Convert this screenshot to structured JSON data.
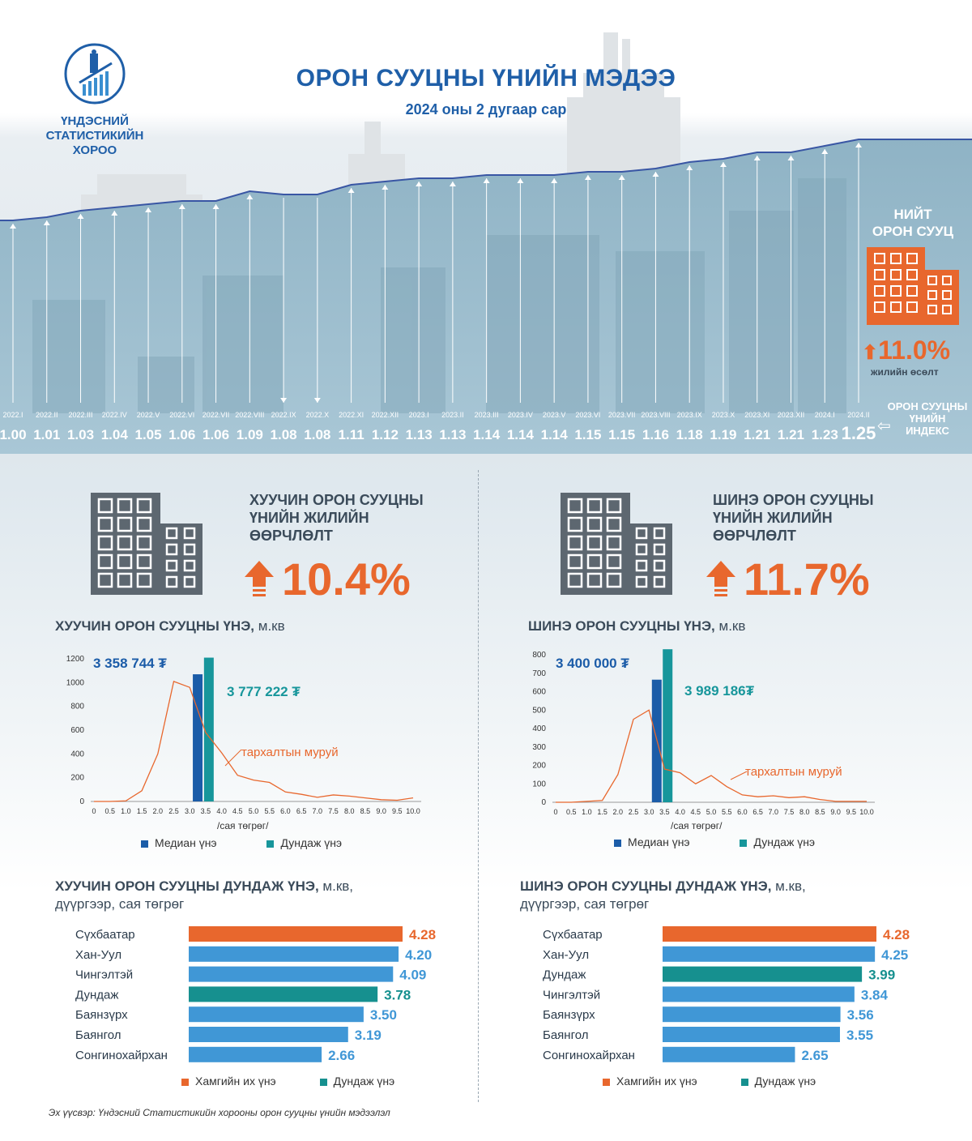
{
  "header": {
    "org_line1": "ҮНДЭСНИЙ",
    "org_line2": "СТАТИСТИКИЙН",
    "org_line3": "ХОРОО",
    "title": "ОРОН СУУЦНЫ ҮНИЙН МЭДЭЭ",
    "subtitle": "2024 оны 2 дугаар сар"
  },
  "index_panel": {
    "label_total": "НИЙТ\nОРОН СУУЦ",
    "total_change": "11.0%",
    "total_change_caption": "жилийн өсөлт",
    "index_label": "ОРОН СУУЦНЫ\nҮНИЙН\nИНДЕКС"
  },
  "old_housing": {
    "title_lines": [
      "ХУУЧИН ОРОН СУУЦНЫ",
      "ҮНИЙН ЖИЛИЙН",
      "ӨӨРЧЛӨЛТ"
    ],
    "change": "10.4%",
    "price_title": "ХУУЧИН ОРОН СУУЦНЫ ҮНЭ,",
    "price_unit": " м.кв",
    "median_label": "3 358 744 ₮",
    "mean_label": "3 777 222 ₮",
    "curve_label": "тархалтын муруй",
    "x_unit": "/сая төгрөг/",
    "legend_median": "Медиан үнэ",
    "legend_mean": "Дундаж үнэ",
    "district_title": "ХУУЧИН ОРОН СУУЦНЫ ДУНДАЖ ҮНЭ,",
    "district_title_unit": " м.кв,",
    "district_subtitle": "дүүргээр, сая төгрөг",
    "legend_max": "Хамгийн их үнэ",
    "legend_avg": "Дундаж үнэ"
  },
  "new_housing": {
    "title_lines": [
      "ШИНЭ ОРОН СУУЦНЫ",
      "ҮНИЙН ЖИЛИЙН",
      "ӨӨРЧЛӨЛТ"
    ],
    "change": "11.7%",
    "price_title": "ШИНЭ ОРОН СУУЦНЫ ҮНЭ,",
    "price_unit": " м.кв",
    "median_label": "3 400 000 ₮",
    "mean_label": "3 989 186₮",
    "curve_label": "тархалтын муруй",
    "x_unit": "/сая төгрөг/",
    "legend_median": "Медиан үнэ",
    "legend_mean": "Дундаж үнэ",
    "district_title": "ШИНЭ ОРОН СУУЦНЫ ДУНДАЖ ҮНЭ,",
    "district_title_unit": " м.кв,",
    "district_subtitle": "дүүргээр, сая төгрөг",
    "legend_max": "Хамгийн их үнэ",
    "legend_avg": "Дундаж үнэ"
  },
  "source": "Эх үүсвэр: Үндэсний Статистикийн хорооны орон сууцны үнийн мэдээлэл",
  "colors": {
    "brand_blue": "#1f5fa8",
    "orange": "#e8672d",
    "median": "#1b5ca8",
    "mean": "#17969b",
    "bar_blue": "#4097d6",
    "teal_bar": "#16908f"
  },
  "chart_data": [
    {
      "type": "line",
      "name": "index",
      "x": [
        "2022.I",
        "2022.II",
        "2022.III",
        "2022.IV",
        "2022.V",
        "2022.VI",
        "2022.VII",
        "2022.VIII",
        "2022.IX",
        "2022.X",
        "2022.XI",
        "2022.XII",
        "2023.I",
        "2023.II",
        "2023.III",
        "2023.IV",
        "2023.V",
        "2023.VI",
        "2023.VII",
        "2023.VIII",
        "2023.IX",
        "2023.X",
        "2023.XI",
        "2023.XII",
        "2024.I",
        "2024.II"
      ],
      "values": [
        1.0,
        1.01,
        1.03,
        1.04,
        1.05,
        1.06,
        1.06,
        1.09,
        1.08,
        1.08,
        1.11,
        1.12,
        1.13,
        1.13,
        1.14,
        1.14,
        1.14,
        1.15,
        1.15,
        1.16,
        1.18,
        1.19,
        1.21,
        1.21,
        1.23,
        1.25
      ],
      "value_labels": [
        "1.00",
        "1.01",
        "1.03",
        "1.04",
        "1.05",
        "1.06",
        "1.06",
        "1.09",
        "1.08",
        "1.08",
        "1.11",
        "1.12",
        "1.13",
        "1.13",
        "1.14",
        "1.14",
        "1.14",
        "1.15",
        "1.15",
        "1.16",
        "1.18",
        "1.19",
        "1.21",
        "1.21",
        "1.23",
        "1.25"
      ],
      "down": [
        8,
        9
      ]
    },
    {
      "type": "bar",
      "name": "old_distribution",
      "x_ticks": [
        "0",
        "0.5",
        "1.0",
        "1.5",
        "2.0",
        "2.5",
        "3.0",
        "3.5",
        "4.0",
        "4.5",
        "5.0",
        "5.5",
        "6.0",
        "6.5",
        "7.0",
        "7.5",
        "8.0",
        "8.5",
        "9.0",
        "9.5",
        "10.0"
      ],
      "y_ticks": [
        "0",
        "200",
        "400",
        "600",
        "800",
        "1000",
        "1200"
      ],
      "ylim": [
        0,
        1200
      ],
      "curve": [
        0,
        0,
        5,
        90,
        400,
        1010,
        960,
        580,
        410,
        220,
        180,
        160,
        80,
        60,
        35,
        55,
        45,
        30,
        15,
        10,
        30
      ],
      "median_bar": {
        "x": 3.25,
        "value": 1070
      },
      "mean_bar": {
        "x": 3.6,
        "value": 1210
      }
    },
    {
      "type": "bar",
      "name": "new_distribution",
      "x_ticks": [
        "0",
        "0.5",
        "1.0",
        "1.5",
        "2.0",
        "2.5",
        "3.0",
        "3.5",
        "4.0",
        "4.5",
        "5.0",
        "5.5",
        "6.0",
        "6.5",
        "7.0",
        "7.5",
        "8.0",
        "8.5",
        "9.0",
        "9.5",
        "10.0"
      ],
      "y_ticks": [
        "0",
        "100",
        "200",
        "300",
        "400",
        "500",
        "600",
        "700",
        "800"
      ],
      "ylim": [
        0,
        800
      ],
      "curve": [
        0,
        0,
        5,
        10,
        150,
        450,
        500,
        180,
        160,
        100,
        145,
        85,
        40,
        30,
        35,
        25,
        30,
        15,
        5,
        5,
        5
      ],
      "median_bar": {
        "x": 3.25,
        "value": 665
      },
      "mean_bar": {
        "x": 3.6,
        "value": 830
      }
    },
    {
      "type": "bar",
      "name": "old_districts",
      "categories": [
        "Сүхбаатар",
        "Хан-Уул",
        "Чингэлтэй",
        "Дундаж",
        "Баянзүрх",
        "Баянгол",
        "Сонгинохайрхан"
      ],
      "values": [
        4.28,
        4.2,
        4.09,
        3.78,
        3.5,
        3.19,
        2.66
      ],
      "value_labels": [
        "4.28",
        "4.20",
        "4.09",
        "3.78",
        "3.50",
        "3.19",
        "2.66"
      ],
      "kinds": [
        "max",
        "normal",
        "normal",
        "avg",
        "normal",
        "normal",
        "normal"
      ]
    },
    {
      "type": "bar",
      "name": "new_districts",
      "categories": [
        "Сүхбаатар",
        "Хан-Уул",
        "Дундаж",
        "Чингэлтэй",
        "Баянзүрх",
        "Баянгол",
        "Сонгинохайрхан"
      ],
      "values": [
        4.28,
        4.25,
        3.99,
        3.84,
        3.56,
        3.55,
        2.65
      ],
      "value_labels": [
        "4.28",
        "4.25",
        "3.99",
        "3.84",
        "3.56",
        "3.55",
        "2.65"
      ],
      "kinds": [
        "max",
        "normal",
        "avg",
        "normal",
        "normal",
        "normal",
        "normal"
      ]
    }
  ]
}
